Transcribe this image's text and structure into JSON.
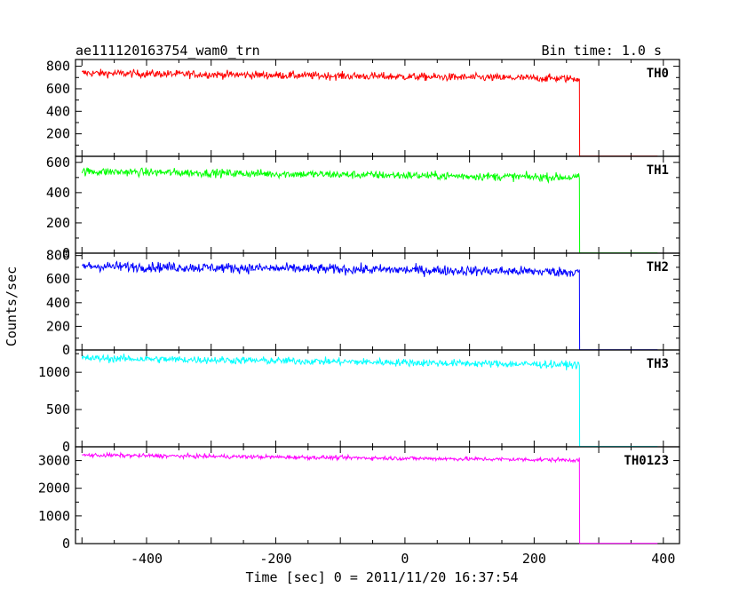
{
  "header": {
    "left": "ae111120163754_wam0_trn",
    "right": "Bin time: 1.0 s"
  },
  "xlabel": "Time [sec] 0 = 2011/11/20 16:37:54",
  "ylabel": "Counts/sec",
  "chart_data": {
    "type": "line",
    "xlim": [
      -510,
      425
    ],
    "x_ticks": [
      -400,
      -200,
      0,
      200,
      400
    ],
    "bin_time_s": 1.0,
    "drop_time_s": 270,
    "panels": [
      {
        "name": "TH0",
        "color": "#ff0000",
        "ylim": [
          0,
          860
        ],
        "y_ticks": [
          200,
          400,
          600,
          800
        ],
        "level_start": 740,
        "level_end": 690,
        "noise": 45,
        "level_after": 2
      },
      {
        "name": "TH1",
        "color": "#00ff00",
        "ylim": [
          0,
          640
        ],
        "y_ticks": [
          0,
          200,
          400,
          600
        ],
        "level_start": 540,
        "level_end": 500,
        "noise": 35,
        "level_after": 2
      },
      {
        "name": "TH2",
        "color": "#0000ff",
        "ylim": [
          0,
          820
        ],
        "y_ticks": [
          0,
          200,
          400,
          600,
          800
        ],
        "level_start": 710,
        "level_end": 660,
        "noise": 55,
        "level_after": 2
      },
      {
        "name": "TH3",
        "color": "#00ffff",
        "ylim": [
          0,
          1300
        ],
        "y_ticks": [
          0,
          500,
          1000
        ],
        "level_start": 1190,
        "level_end": 1100,
        "noise": 65,
        "level_after": 5
      },
      {
        "name": "TH0123",
        "color": "#ff00ff",
        "ylim": [
          0,
          3500
        ],
        "y_ticks": [
          0,
          1000,
          2000,
          3000
        ],
        "level_start": 3200,
        "level_end": 3020,
        "noise": 95,
        "level_after": 10
      }
    ]
  }
}
